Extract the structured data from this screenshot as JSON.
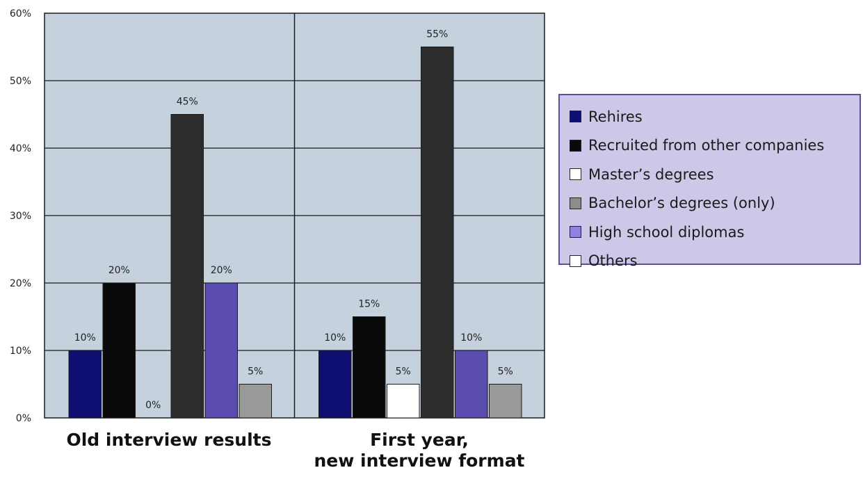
{
  "chart_data": {
    "type": "bar",
    "categories": [
      "Old interview results",
      "First year,\nnew interview format"
    ],
    "series": [
      {
        "name": "Rehires",
        "color": "#0f0f72",
        "values": [
          10,
          10
        ],
        "labels": [
          "10%",
          "10%"
        ]
      },
      {
        "name": "Recruited from other companies",
        "color": "#0a0a0a",
        "values": [
          20,
          15
        ],
        "labels": [
          "20%",
          "15%"
        ]
      },
      {
        "name": "Master’s degrees",
        "color": "#ffffff",
        "values": [
          0,
          5
        ],
        "labels": [
          "0%",
          "5%"
        ]
      },
      {
        "name": "Bachelor’s degrees (only)",
        "color": "#2d2d2d",
        "values": [
          45,
          55
        ],
        "labels": [
          "45%",
          "55%"
        ]
      },
      {
        "name": "High school diplomas",
        "color": "#5b4cb0",
        "values": [
          20,
          10
        ],
        "labels": [
          "20%",
          "10%"
        ]
      },
      {
        "name": "Others",
        "color": "#9a9a9a",
        "values": [
          5,
          5
        ],
        "labels": [
          "5%",
          "5%"
        ]
      }
    ],
    "legend": [
      {
        "name": "Rehires",
        "color": "#0f0f72"
      },
      {
        "name": "Recruited from other companies",
        "color": "#0a0a0a"
      },
      {
        "name": "Master’s degrees",
        "color": "#ffffff"
      },
      {
        "name": "Bachelor’s degrees (only)",
        "color": "#8c8c8c"
      },
      {
        "name": "High school diplomas",
        "color": "#8d82e0"
      },
      {
        "name": "Others",
        "color": "#ffffff"
      }
    ],
    "ylim": [
      0,
      60
    ],
    "yticks": [
      "0%",
      "10%",
      "20%",
      "30%",
      "40%",
      "50%",
      "60%"
    ],
    "grid": true,
    "legend_position": "right",
    "plot_background": "#c5d2de"
  }
}
